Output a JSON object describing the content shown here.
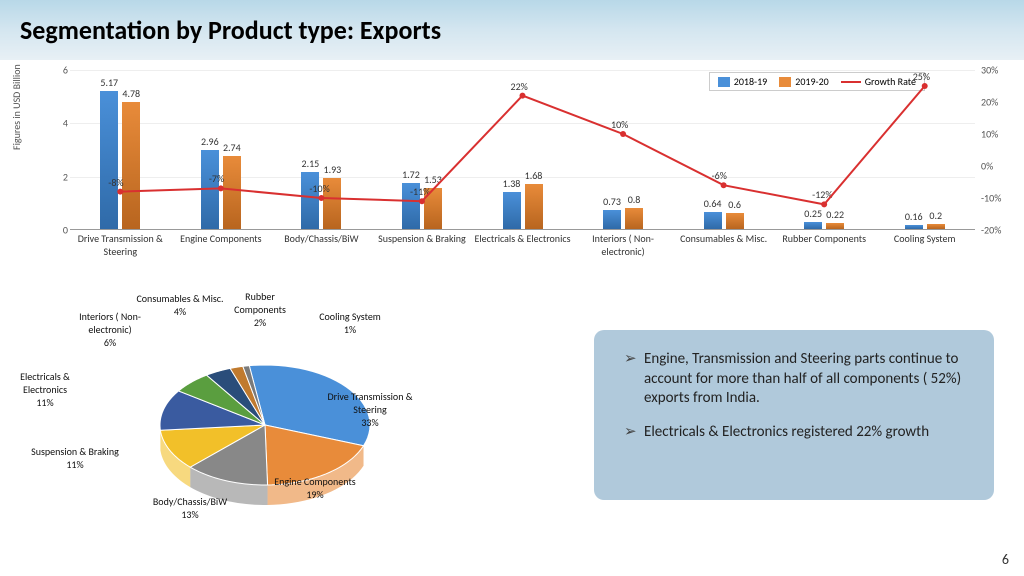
{
  "title": "Segmentation by Product type: Exports",
  "page_number": "6",
  "bar_chart": {
    "y_axis_label": "Figures in USD Billion",
    "y_left": {
      "min": 0,
      "max": 6,
      "step": 2,
      "ticks": [
        "0",
        "2",
        "4",
        "6"
      ]
    },
    "y_right": {
      "min": -20,
      "max": 30,
      "step": 10,
      "ticks": [
        "-20%",
        "-10%",
        "0%",
        "10%",
        "20%",
        "30%"
      ]
    },
    "legend": {
      "s1": "2018-19",
      "s2": "2019-20",
      "s3": "Growth Rate"
    },
    "colors": {
      "s1": "#4a90d9",
      "s2": "#e88b3a",
      "line": "#d93030"
    },
    "categories": [
      {
        "name": "Drive Transmission & Steering",
        "v1": 5.17,
        "v2": 4.78,
        "growth": -8,
        "glabel": "-8%"
      },
      {
        "name": "Engine Components",
        "v1": 2.96,
        "v2": 2.74,
        "growth": -7,
        "glabel": "-7%"
      },
      {
        "name": "Body/Chassis/BiW",
        "v1": 2.15,
        "v2": 1.93,
        "growth": -10,
        "glabel": "-10%"
      },
      {
        "name": "Suspension & Braking",
        "v1": 1.72,
        "v2": 1.53,
        "growth": -11,
        "glabel": "-11%"
      },
      {
        "name": "Electricals & Electronics",
        "v1": 1.38,
        "v2": 1.68,
        "growth": 22,
        "glabel": "22%"
      },
      {
        "name": "Interiors ( Non-electronic)",
        "v1": 0.73,
        "v2": 0.8,
        "growth": 10,
        "glabel": "10%"
      },
      {
        "name": "Consumables & Misc.",
        "v1": 0.64,
        "v2": 0.6,
        "growth": -6,
        "glabel": "-6%"
      },
      {
        "name": "Rubber Components",
        "v1": 0.25,
        "v2": 0.22,
        "growth": -12,
        "glabel": "-12%"
      },
      {
        "name": "Cooling System",
        "v1": 0.16,
        "v2": 0.2,
        "growth": 25,
        "glabel": "25%"
      }
    ]
  },
  "pie_chart": {
    "slices": [
      {
        "label": "Drive Transmission & Steering",
        "pct": 33,
        "color": "#4a90d9"
      },
      {
        "label": "Engine Components",
        "pct": 19,
        "color": "#e88b3a"
      },
      {
        "label": "Body/Chassis/BiW",
        "pct": 13,
        "color": "#888888"
      },
      {
        "label": "Suspension & Braking",
        "pct": 11,
        "color": "#f2c029"
      },
      {
        "label": "Electricals & Electronics",
        "pct": 11,
        "color": "#3a5ba0"
      },
      {
        "label": "Interiors ( Non-electronic)",
        "pct": 6,
        "color": "#5a9e3f"
      },
      {
        "label": "Consumables & Misc.",
        "pct": 4,
        "color": "#2a4d7a"
      },
      {
        "label": "Rubber Components",
        "pct": 2,
        "color": "#c07a2e"
      },
      {
        "label": "Cooling System",
        "pct": 1,
        "color": "#7a7a7a"
      }
    ]
  },
  "callout": {
    "b1": "Engine, Transmission and Steering parts continue to account for more than half of all components ( 52%) exports from India.",
    "b2": " Electricals & Electronics  registered 22% growth"
  }
}
